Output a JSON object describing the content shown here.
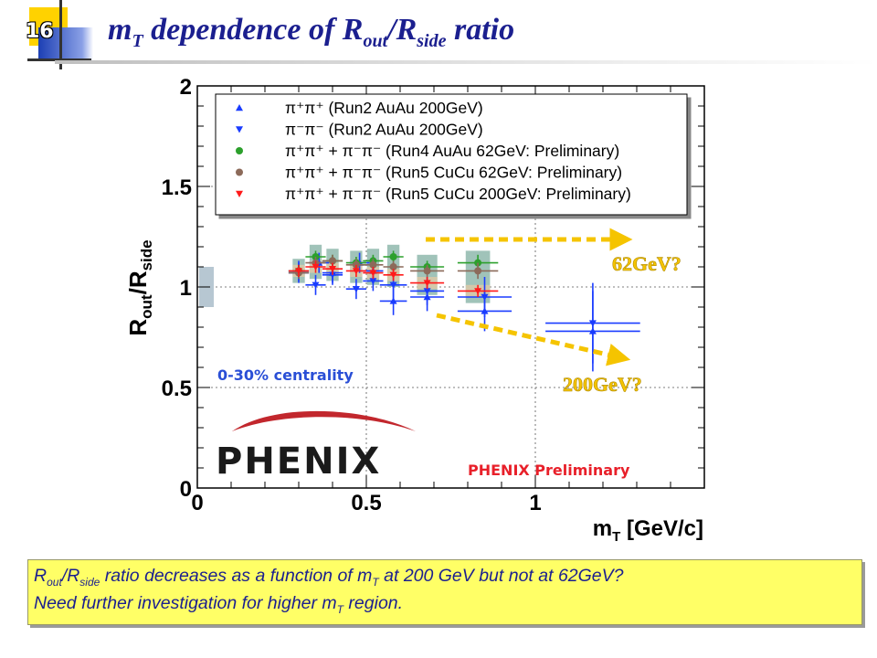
{
  "slide": {
    "number": "16",
    "title_main": "m",
    "title_sub1": "T",
    "title_mid": " dependence of R",
    "title_sub2": "out",
    "title_slash": "/R",
    "title_sub3": "side",
    "title_end": " ratio"
  },
  "chart_data": {
    "type": "scatter",
    "xlabel": "m",
    "xlabel_sub": "T",
    "xlabel_unit": " [GeV/c]",
    "ylabel": "R",
    "ylabel_sub1": "out",
    "ylabel_slash": "/R",
    "ylabel_sub2": "side",
    "xlim": [
      0,
      1.5
    ],
    "ylim": [
      0,
      2
    ],
    "x_ticks": [
      "0",
      "0.5",
      "1"
    ],
    "y_ticks": [
      "0",
      "0.5",
      "1",
      "1.5",
      "2"
    ],
    "legend_position": "top",
    "legend": [
      {
        "label": "π⁺π⁺ (Run2 AuAu 200GeV)",
        "marker": "triangle-up",
        "color": "#1a3cff"
      },
      {
        "label": "π⁻π⁻ (Run2 AuAu 200GeV)",
        "marker": "triangle-down",
        "color": "#1a3cff"
      },
      {
        "label": "π⁺π⁺ + π⁻π⁻ (Run4 AuAu 62GeV: Preliminary)",
        "marker": "circle",
        "color": "#2ca02c"
      },
      {
        "label": "π⁺π⁺ + π⁻π⁻ (Run5 CuCu 62GeV: Preliminary)",
        "marker": "circle",
        "color": "#8c6a5a"
      },
      {
        "label": "π⁺π⁺ + π⁻π⁻ (Run5 CuCu 200GeV: Preliminary)",
        "marker": "triangle-down",
        "color": "#ff1a1a"
      }
    ],
    "series": [
      {
        "name": "π⁺π⁺ (Run2 AuAu 200GeV)",
        "color": "#1a3cff",
        "marker": "triangle-up",
        "points": [
          {
            "x": 0.3,
            "y": 1.08,
            "xerr": 0.03,
            "yerr": 0.05
          },
          {
            "x": 0.36,
            "y": 1.12,
            "xerr": 0.03,
            "yerr": 0.05
          },
          {
            "x": 0.4,
            "y": 1.07,
            "xerr": 0.03,
            "yerr": 0.05
          },
          {
            "x": 0.48,
            "y": 1.12,
            "xerr": 0.03,
            "yerr": 0.05
          },
          {
            "x": 0.52,
            "y": 1.08,
            "xerr": 0.03,
            "yerr": 0.05
          },
          {
            "x": 0.58,
            "y": 0.93,
            "xerr": 0.04,
            "yerr": 0.07
          },
          {
            "x": 0.68,
            "y": 0.95,
            "xerr": 0.05,
            "yerr": 0.07
          },
          {
            "x": 0.85,
            "y": 0.88,
            "xerr": 0.08,
            "yerr": 0.1
          },
          {
            "x": 1.17,
            "y": 0.78,
            "xerr": 0.14,
            "yerr": 0.2
          }
        ]
      },
      {
        "name": "π⁻π⁻ (Run2 AuAu 200GeV)",
        "color": "#1a3cff",
        "marker": "triangle-down",
        "points": [
          {
            "x": 0.3,
            "y": 1.07,
            "xerr": 0.03,
            "yerr": 0.05
          },
          {
            "x": 0.35,
            "y": 1.01,
            "xerr": 0.03,
            "yerr": 0.05
          },
          {
            "x": 0.4,
            "y": 1.06,
            "xerr": 0.03,
            "yerr": 0.05
          },
          {
            "x": 0.47,
            "y": 0.99,
            "xerr": 0.03,
            "yerr": 0.05
          },
          {
            "x": 0.52,
            "y": 1.03,
            "xerr": 0.03,
            "yerr": 0.05
          },
          {
            "x": 0.58,
            "y": 1.01,
            "xerr": 0.04,
            "yerr": 0.07
          },
          {
            "x": 0.68,
            "y": 0.98,
            "xerr": 0.05,
            "yerr": 0.07
          },
          {
            "x": 0.85,
            "y": 0.95,
            "xerr": 0.08,
            "yerr": 0.1
          },
          {
            "x": 1.17,
            "y": 0.82,
            "xerr": 0.14,
            "yerr": 0.2
          }
        ]
      },
      {
        "name": "π⁺π⁺ + π⁻π⁻ (Run4 AuAu 62GeV: Preliminary)",
        "color": "#2ca02c",
        "marker": "circle",
        "points": [
          {
            "x": 0.3,
            "y": 1.08,
            "xerr": 0.03,
            "yerr": 0.03
          },
          {
            "x": 0.35,
            "y": 1.15,
            "xerr": 0.03,
            "yerr": 0.03
          },
          {
            "x": 0.4,
            "y": 1.13,
            "xerr": 0.03,
            "yerr": 0.03
          },
          {
            "x": 0.47,
            "y": 1.12,
            "xerr": 0.03,
            "yerr": 0.03
          },
          {
            "x": 0.52,
            "y": 1.13,
            "xerr": 0.03,
            "yerr": 0.03
          },
          {
            "x": 0.58,
            "y": 1.15,
            "xerr": 0.03,
            "yerr": 0.03
          },
          {
            "x": 0.68,
            "y": 1.1,
            "xerr": 0.05,
            "yerr": 0.03
          },
          {
            "x": 0.83,
            "y": 1.12,
            "xerr": 0.06,
            "yerr": 0.04
          }
        ]
      },
      {
        "name": "π⁺π⁺ + π⁻π⁻ (Run5 CuCu 62GeV: Preliminary)",
        "color": "#8c6a5a",
        "marker": "circle",
        "points": [
          {
            "x": 0.3,
            "y": 1.07,
            "xerr": 0.03,
            "yerr": 0.03
          },
          {
            "x": 0.35,
            "y": 1.12,
            "xerr": 0.03,
            "yerr": 0.03
          },
          {
            "x": 0.4,
            "y": 1.13,
            "xerr": 0.03,
            "yerr": 0.03
          },
          {
            "x": 0.47,
            "y": 1.11,
            "xerr": 0.03,
            "yerr": 0.03
          },
          {
            "x": 0.52,
            "y": 1.11,
            "xerr": 0.03,
            "yerr": 0.03
          },
          {
            "x": 0.58,
            "y": 1.1,
            "xerr": 0.03,
            "yerr": 0.03
          },
          {
            "x": 0.68,
            "y": 1.08,
            "xerr": 0.05,
            "yerr": 0.03
          },
          {
            "x": 0.83,
            "y": 1.08,
            "xerr": 0.06,
            "yerr": 0.04
          }
        ]
      },
      {
        "name": "π⁺π⁺ + π⁻π⁻ (Run5 CuCu 200GeV: Preliminary)",
        "color": "#ff1a1a",
        "marker": "triangle-down",
        "points": [
          {
            "x": 0.3,
            "y": 1.08,
            "xerr": 0.03,
            "yerr": 0.03
          },
          {
            "x": 0.35,
            "y": 1.1,
            "xerr": 0.03,
            "yerr": 0.03
          },
          {
            "x": 0.4,
            "y": 1.09,
            "xerr": 0.03,
            "yerr": 0.03
          },
          {
            "x": 0.47,
            "y": 1.08,
            "xerr": 0.03,
            "yerr": 0.03
          },
          {
            "x": 0.52,
            "y": 1.07,
            "xerr": 0.03,
            "yerr": 0.03
          },
          {
            "x": 0.58,
            "y": 1.06,
            "xerr": 0.03,
            "yerr": 0.03
          },
          {
            "x": 0.68,
            "y": 1.02,
            "xerr": 0.05,
            "yerr": 0.03
          },
          {
            "x": 0.83,
            "y": 0.98,
            "xerr": 0.06,
            "yerr": 0.03
          }
        ]
      }
    ],
    "annotations": {
      "centrality": "0-30% centrality",
      "preliminary": "PHENIX Preliminary",
      "arrow_62": "62GeV?",
      "arrow_200": "200GeV?",
      "logo": "PHENIX"
    },
    "colors": {
      "annotation_blue": "#2a4fd6",
      "preliminary_red": "#e8202a",
      "arrow_yellow": "#f5c400",
      "band_teal": "#8fb8ad",
      "band_tan": "#d8c9a8",
      "band_grey": "#b7c7d2"
    }
  },
  "conclusion": {
    "line1_a": "R",
    "line1_sub1": "out",
    "line1_b": "/R",
    "line1_sub2": "side",
    "line1_c": " ratio decreases as a function of m",
    "line1_sub3": "T",
    "line1_d": " at 200 GeV but not at 62GeV?",
    "line2_a": "Need further investigation for higher m",
    "line2_sub": "T",
    "line2_b": " region."
  }
}
